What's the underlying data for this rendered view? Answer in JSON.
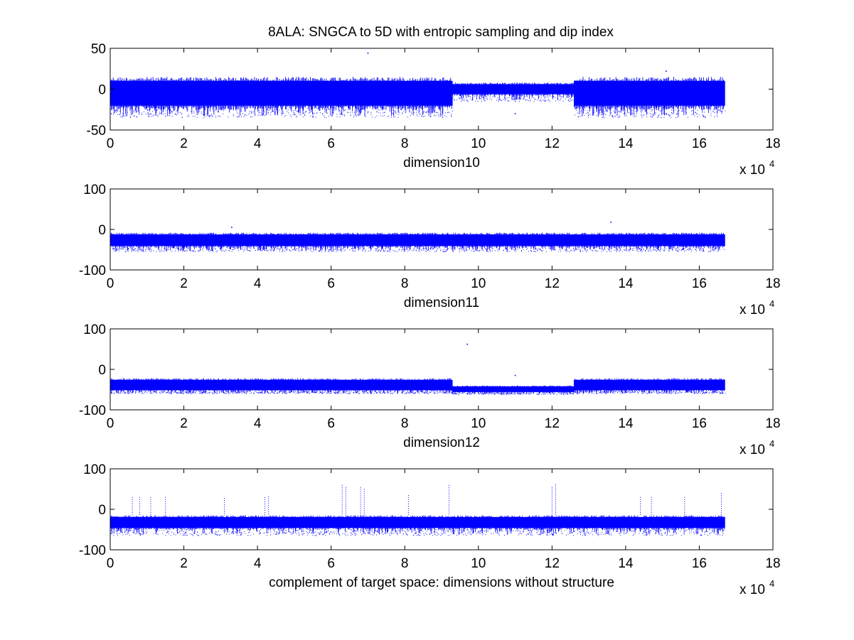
{
  "figure": {
    "title": "8ALA: SNGCA to 5D with entropic sampling and dip index",
    "background": "#ffffff",
    "series_color": "#0000ff"
  },
  "chart_data": [
    {
      "type": "scatter",
      "xlabel": "dimension10",
      "x_multiplier": "x 10",
      "x_multiplier_exp": "4",
      "xlim": [
        0,
        18
      ],
      "ylim": [
        -50,
        50
      ],
      "xticks": [
        "0",
        "2",
        "4",
        "6",
        "8",
        "10",
        "12",
        "14",
        "16",
        "18"
      ],
      "yticks": [
        "-50",
        "0",
        "50"
      ],
      "x_range_data": [
        0,
        16.7
      ],
      "band_segments": [
        {
          "x": [
            0,
            9.3
          ],
          "upper": 15,
          "lower": -25,
          "outlier_low": -35
        },
        {
          "x": [
            9.3,
            12.6
          ],
          "upper": 8,
          "lower": -8,
          "outlier_low": -15
        },
        {
          "x": [
            12.6,
            16.7
          ],
          "upper": 15,
          "lower": -25,
          "outlier_low": -35
        }
      ],
      "notable_points": [
        [
          7.0,
          44
        ],
        [
          11.0,
          -30
        ],
        [
          15.1,
          22
        ],
        [
          15.1,
          -30
        ]
      ]
    },
    {
      "type": "scatter",
      "xlabel": "dimension11",
      "x_multiplier": "x 10",
      "x_multiplier_exp": "4",
      "xlim": [
        0,
        18
      ],
      "ylim": [
        -100,
        100
      ],
      "xticks": [
        "0",
        "2",
        "4",
        "6",
        "8",
        "10",
        "12",
        "14",
        "16",
        "18"
      ],
      "yticks": [
        "-100",
        "0",
        "100"
      ],
      "x_range_data": [
        0,
        16.7
      ],
      "band_segments": [
        {
          "x": [
            0,
            16.7
          ],
          "upper": -8,
          "lower": -45,
          "outlier_low": -55
        }
      ],
      "notable_points": [
        [
          13.6,
          18
        ],
        [
          3.3,
          5
        ]
      ]
    },
    {
      "type": "scatter",
      "xlabel": "dimension12",
      "x_multiplier": "x 10",
      "x_multiplier_exp": "4",
      "xlim": [
        0,
        18
      ],
      "ylim": [
        -100,
        100
      ],
      "xticks": [
        "0",
        "2",
        "4",
        "6",
        "8",
        "10",
        "12",
        "14",
        "16",
        "18"
      ],
      "yticks": [
        "-100",
        "0",
        "100"
      ],
      "x_range_data": [
        0,
        16.7
      ],
      "band_segments": [
        {
          "x": [
            0,
            9.3
          ],
          "upper": -22,
          "lower": -55,
          "outlier_low": -60
        },
        {
          "x": [
            9.3,
            12.6
          ],
          "upper": -40,
          "lower": -58,
          "outlier_low": -62
        },
        {
          "x": [
            12.6,
            16.7
          ],
          "upper": -22,
          "lower": -55,
          "outlier_low": -60
        }
      ],
      "notable_points": [
        [
          9.7,
          62
        ],
        [
          11.0,
          -15
        ]
      ]
    },
    {
      "type": "scatter",
      "xlabel": "complement of target space: dimensions without structure",
      "x_multiplier": "x 10",
      "x_multiplier_exp": "4",
      "xlim": [
        0,
        18
      ],
      "ylim": [
        -100,
        100
      ],
      "xticks": [
        "0",
        "2",
        "4",
        "6",
        "8",
        "10",
        "12",
        "14",
        "16",
        "18"
      ],
      "yticks": [
        "-100",
        "0",
        "100"
      ],
      "x_range_data": [
        0,
        16.7
      ],
      "band_segments": [
        {
          "x": [
            0,
            16.7
          ],
          "upper": -15,
          "lower": -50,
          "outlier_low": -65
        }
      ],
      "spikes": [
        {
          "x": 0.6,
          "top": 30
        },
        {
          "x": 0.8,
          "top": 30
        },
        {
          "x": 1.1,
          "top": 30
        },
        {
          "x": 1.5,
          "top": 30
        },
        {
          "x": 3.1,
          "top": 28
        },
        {
          "x": 4.2,
          "top": 30
        },
        {
          "x": 4.3,
          "top": 32
        },
        {
          "x": 6.3,
          "top": 60
        },
        {
          "x": 6.4,
          "top": 55
        },
        {
          "x": 6.8,
          "top": 55
        },
        {
          "x": 6.9,
          "top": 50
        },
        {
          "x": 8.1,
          "top": 35
        },
        {
          "x": 9.2,
          "top": 60
        },
        {
          "x": 12.0,
          "top": 55
        },
        {
          "x": 12.1,
          "top": 62
        },
        {
          "x": 14.4,
          "top": 30
        },
        {
          "x": 14.7,
          "top": 30
        },
        {
          "x": 15.6,
          "top": 30
        },
        {
          "x": 16.6,
          "top": 40
        }
      ]
    }
  ]
}
